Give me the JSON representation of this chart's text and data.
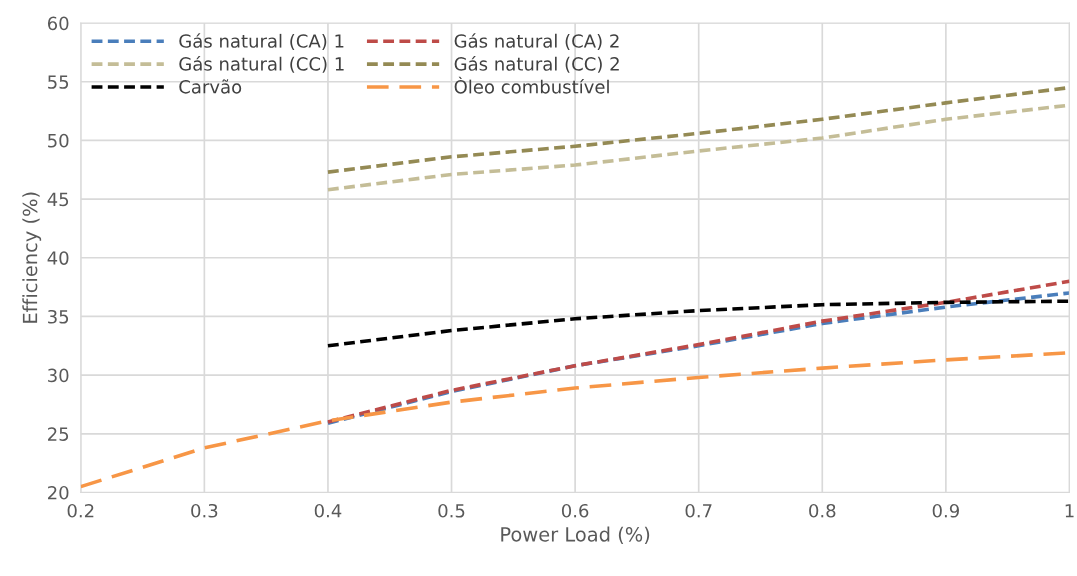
{
  "chart_data": {
    "type": "line",
    "xlabel": "Power Load (%)",
    "ylabel": "Efficiency (%)",
    "xlim": [
      0.2,
      1
    ],
    "xticks": [
      0.2,
      0.3,
      0.4,
      0.5,
      0.6,
      0.7,
      0.8,
      0.9,
      1
    ],
    "ylim": [
      20,
      60
    ],
    "yticks": [
      20,
      25,
      30,
      35,
      40,
      45,
      50,
      55,
      60
    ],
    "grid": true,
    "legend": "top left",
    "marker": "none",
    "series": [
      {
        "name": "Gás natural (CA) 1",
        "color": "#4a7ebb",
        "line_style": "dashed",
        "x": [
          0.4,
          0.5,
          0.6,
          0.7,
          0.8,
          0.9,
          1
        ],
        "values": [
          25.9,
          28.6,
          30.8,
          32.5,
          34.4,
          35.8,
          37.0
        ]
      },
      {
        "name": "Gás natural (CA) 2",
        "color": "#be4b48",
        "line_style": "dashed",
        "x": [
          0.4,
          0.5,
          0.6,
          0.7,
          0.8,
          0.9,
          1
        ],
        "values": [
          26.0,
          28.7,
          30.8,
          32.6,
          34.6,
          36.2,
          38.0
        ]
      },
      {
        "name": "Gás natural (CC) 1",
        "color": "#c4bd97",
        "line_style": "dashed",
        "x": [
          0.4,
          0.5,
          0.6,
          0.7,
          0.8,
          0.9,
          1
        ],
        "values": [
          45.8,
          47.1,
          47.9,
          49.1,
          50.2,
          51.8,
          53.0
        ]
      },
      {
        "name": "Gás natural (CC) 2",
        "color": "#948a54",
        "line_style": "dashed",
        "x": [
          0.4,
          0.5,
          0.6,
          0.7,
          0.8,
          0.9,
          1
        ],
        "values": [
          47.3,
          48.6,
          49.5,
          50.6,
          51.8,
          53.2,
          54.5
        ]
      },
      {
        "name": "Carvão",
        "color": "#000000",
        "line_style": "dashed",
        "x": [
          0.4,
          0.5,
          0.6,
          0.7,
          0.8,
          0.9,
          1
        ],
        "values": [
          32.5,
          33.8,
          34.8,
          35.5,
          36.0,
          36.2,
          36.3
        ]
      },
      {
        "name": "Òleo combustível",
        "color": "#f79646",
        "line_style": "longdash",
        "x": [
          0.2,
          0.3,
          0.4,
          0.5,
          0.6,
          0.7,
          0.8,
          0.9,
          1
        ],
        "values": [
          20.5,
          23.8,
          26.1,
          27.7,
          28.9,
          29.8,
          30.6,
          31.3,
          31.9
        ]
      }
    ]
  }
}
